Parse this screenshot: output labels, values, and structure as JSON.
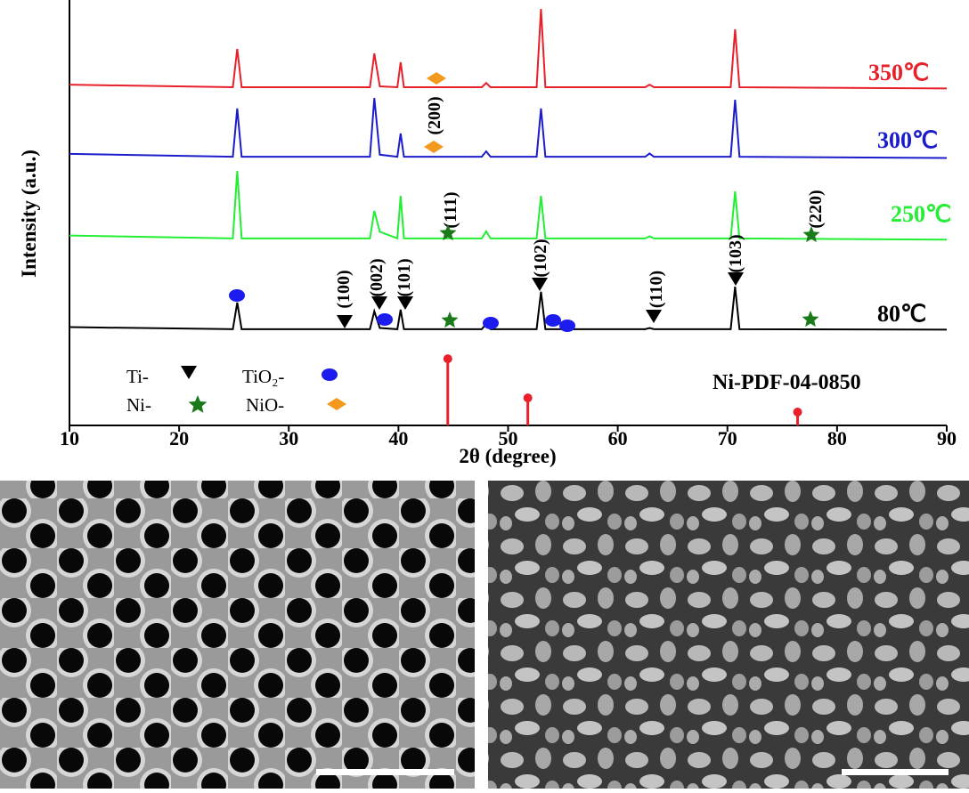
{
  "chart_data": {
    "type": "line",
    "x_label": "2θ (degree)",
    "y_label": "Intensity (a.u.)",
    "xlim": [
      10,
      90
    ],
    "xticks": [
      10,
      20,
      30,
      40,
      50,
      60,
      70,
      80,
      90
    ],
    "ylim": [
      0,
      100
    ],
    "x": [
      10,
      24.9,
      25.3,
      25.7,
      37.4,
      37.8,
      38.3,
      39.9,
      40.2,
      40.5,
      47.6,
      48,
      48.4,
      52.6,
      53,
      53.4,
      62.5,
      62.9,
      63.3,
      70.3,
      70.7,
      71.1,
      90
    ],
    "series": [
      {
        "name": "350℃",
        "color": "#e8202a",
        "values": [
          81.8,
          81.2,
          90.4,
          81.2,
          81.2,
          89.3,
          81.4,
          81.2,
          87.2,
          81.2,
          81.2,
          82.2,
          81.2,
          81.2,
          100,
          81.2,
          81.2,
          81.8,
          81.2,
          81.2,
          95.1,
          81.2,
          80.9
        ]
      },
      {
        "name": "300℃",
        "color": "#1c1ccc",
        "values": [
          65.2,
          64.5,
          76.1,
          64.5,
          64.5,
          78.6,
          65,
          64.5,
          70.1,
          64.5,
          64.5,
          65.8,
          64.5,
          64.5,
          76.1,
          64.5,
          64.5,
          65.3,
          64.5,
          64.5,
          78.2,
          64.5,
          64.2
        ]
      },
      {
        "name": "250℃",
        "color": "#22ee33",
        "values": [
          45.6,
          44.9,
          61.1,
          44.9,
          44.9,
          51.5,
          46.5,
          44.9,
          55.1,
          44.9,
          44.9,
          46.6,
          44.9,
          44.9,
          55.1,
          44.9,
          44.9,
          45.4,
          44.9,
          44.9,
          56.2,
          44.9,
          44.6
        ]
      },
      {
        "name": "80℃",
        "color": "#000000",
        "values": [
          23.6,
          23.1,
          29.5,
          23.1,
          23.1,
          27.4,
          23.4,
          23.1,
          27.8,
          23.1,
          23.1,
          24.4,
          23.1,
          23.1,
          32.1,
          23.1,
          23.1,
          23.4,
          23.1,
          23.1,
          33.3,
          23.1,
          23.0
        ]
      }
    ],
    "reference": {
      "name": "Ni-PDF-04-0850",
      "color": "#e8202a",
      "x": [
        44.5,
        51.8,
        76.4
      ],
      "values": [
        16,
        6.6,
        3.2
      ]
    },
    "annotations": [
      "(100)",
      "(002)",
      "(101)",
      "(102)",
      "(110)",
      "(103)",
      "(111)",
      "(220)",
      "(200)"
    ],
    "legend": [
      "Ti-",
      "TiO₂-",
      "Ni-",
      "NiO-"
    ]
  }
}
